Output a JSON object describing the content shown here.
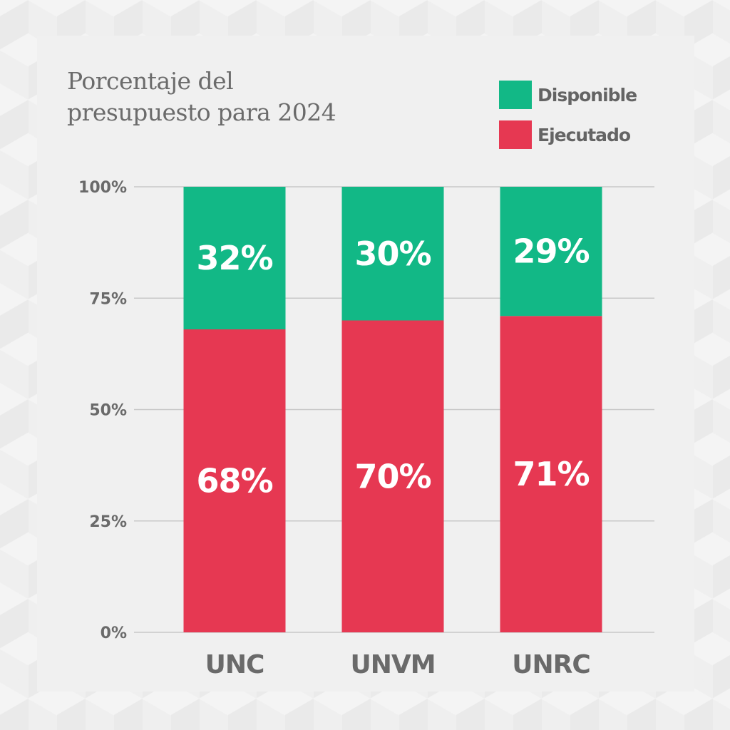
{
  "chart_data": {
    "type": "bar",
    "stacked": true,
    "title": "Porcentaje del presupuesto para 2024",
    "title_lines": [
      "Porcentaje del",
      "presupuesto para 2024"
    ],
    "categories": [
      "UNC",
      "UNVM",
      "UNRC"
    ],
    "series": [
      {
        "name": "Ejecutado",
        "color": "#e63852",
        "values": [
          68,
          70,
          71
        ]
      },
      {
        "name": "Disponible",
        "color": "#12b886",
        "values": [
          32,
          30,
          29
        ]
      }
    ],
    "y_ticks": [
      0,
      25,
      50,
      75,
      100
    ],
    "y_tick_labels": [
      "0%",
      "25%",
      "50%",
      "75%",
      "100%"
    ],
    "value_suffix": "%",
    "ylim": [
      0,
      100
    ],
    "grid": true,
    "legend": {
      "placement": "top-right",
      "items": [
        {
          "label": "Disponible",
          "color": "#12b886"
        },
        {
          "label": "Ejecutado",
          "color": "#e63852"
        }
      ]
    }
  }
}
